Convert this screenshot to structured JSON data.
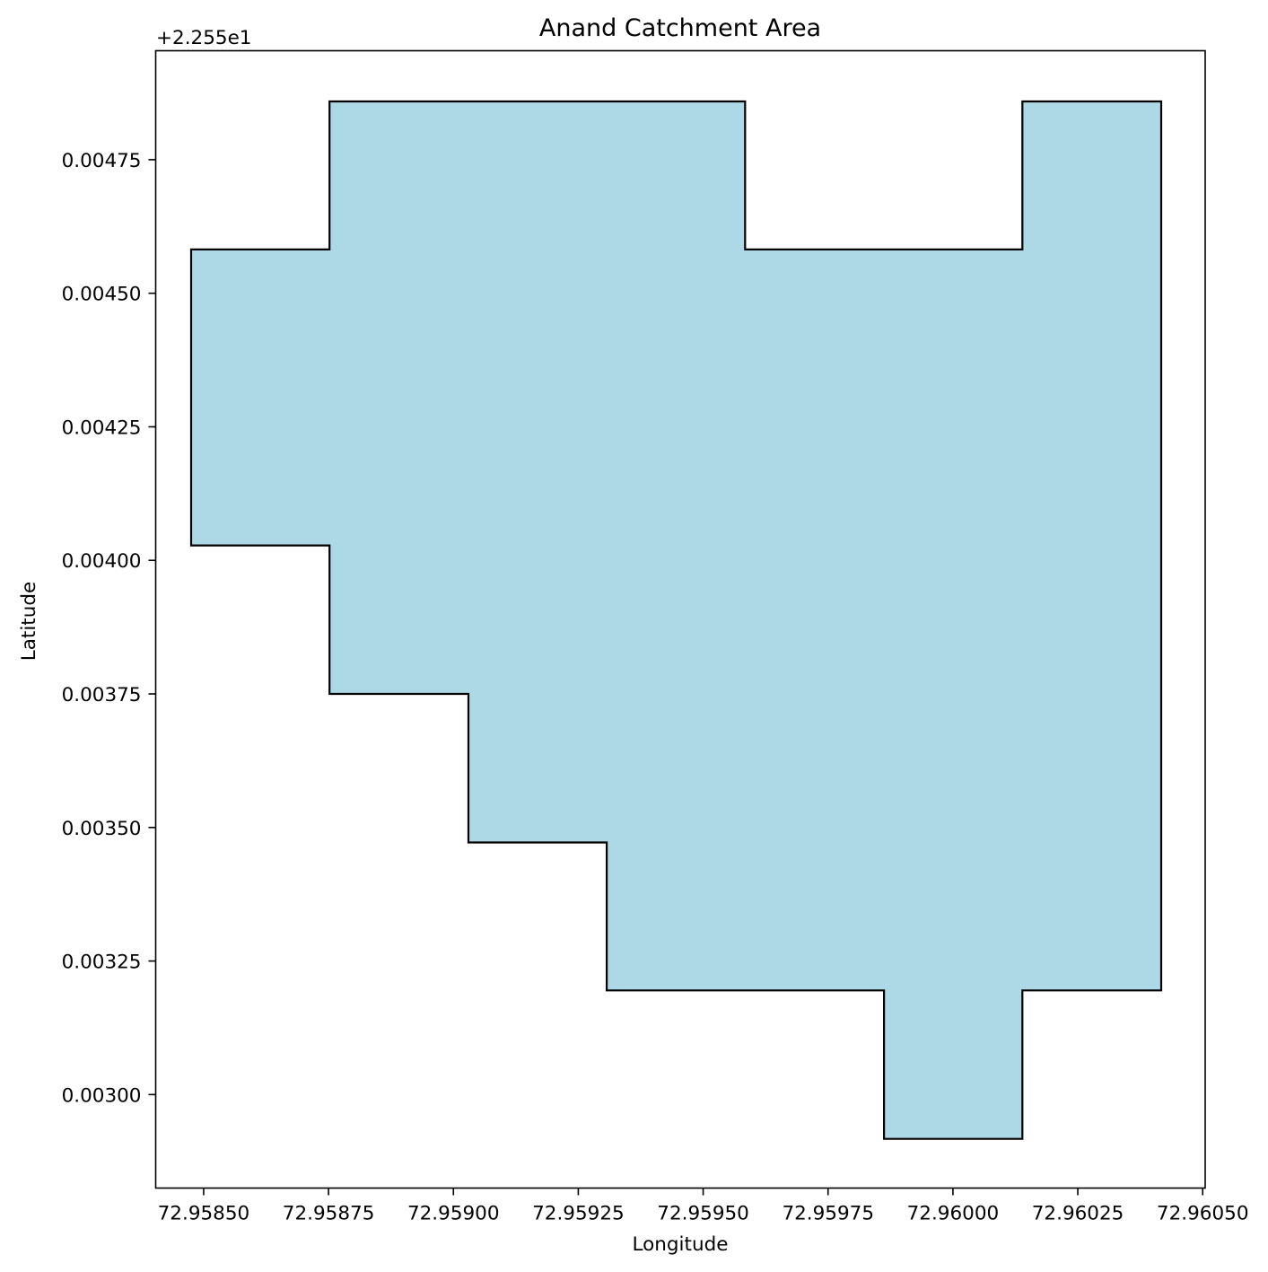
{
  "chart_data": {
    "type": "area",
    "title": "Anand Catchment Area",
    "xlabel": "Longitude",
    "ylabel": "Latitude",
    "y_offset_label": "+2.255e1",
    "y_offset": 22.55,
    "xlim": [
      72.958404,
      72.960505
    ],
    "ylim": [
      22.552825,
      22.554954
    ],
    "xticks": [
      72.9585,
      72.95875,
      72.959,
      72.95925,
      72.9595,
      72.95975,
      72.96,
      72.96025,
      72.9605
    ],
    "xtick_labels": [
      "72.95850",
      "72.95875",
      "72.95900",
      "72.95925",
      "72.95950",
      "72.95975",
      "72.96000",
      "72.96025",
      "72.96050"
    ],
    "yticks": [
      0.003,
      0.00325,
      0.0035,
      0.00375,
      0.004,
      0.00425,
      0.0045,
      0.00475
    ],
    "ytick_labels": [
      "0.00300",
      "0.00325",
      "0.00350",
      "0.00375",
      "0.00400",
      "0.00425",
      "0.00450",
      "0.00475"
    ],
    "fill_color": "#add8e6",
    "edge_color": "#000000",
    "grid": false,
    "polygon": [
      {
        "x": 72.958475,
        "y": 22.554582
      },
      {
        "x": 72.958752,
        "y": 22.554582
      },
      {
        "x": 72.958752,
        "y": 22.554859
      },
      {
        "x": 72.959584,
        "y": 22.554859
      },
      {
        "x": 72.959584,
        "y": 22.554582
      },
      {
        "x": 72.960139,
        "y": 22.554582
      },
      {
        "x": 72.960139,
        "y": 22.554859
      },
      {
        "x": 72.960417,
        "y": 22.554859
      },
      {
        "x": 72.960417,
        "y": 22.553195
      },
      {
        "x": 72.960139,
        "y": 22.553195
      },
      {
        "x": 72.960139,
        "y": 22.552917
      },
      {
        "x": 72.959862,
        "y": 22.552917
      },
      {
        "x": 72.959862,
        "y": 22.553195
      },
      {
        "x": 72.959307,
        "y": 22.553195
      },
      {
        "x": 72.959307,
        "y": 22.553472
      },
      {
        "x": 72.95903,
        "y": 22.553472
      },
      {
        "x": 72.95903,
        "y": 22.55375
      },
      {
        "x": 72.958752,
        "y": 22.55375
      },
      {
        "x": 72.958752,
        "y": 22.554028
      },
      {
        "x": 72.958475,
        "y": 22.554028
      }
    ]
  }
}
